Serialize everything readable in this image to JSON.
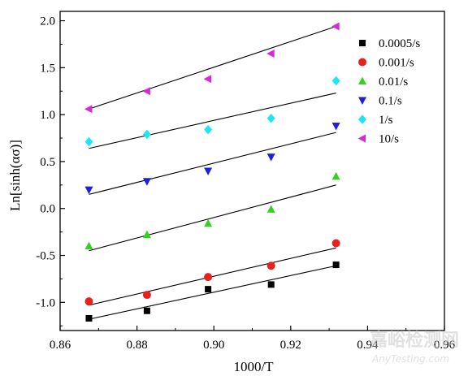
{
  "chart_data": {
    "type": "scatter",
    "xlabel": "1000/T",
    "ylabel": "Ln[sinh(ασ)]",
    "xlim": [
      0.86,
      0.96
    ],
    "ylim": [
      -1.3,
      2.1
    ],
    "x_ticks": [
      "0.86",
      "0.88",
      "0.90",
      "0.92",
      "0.94",
      "0.96"
    ],
    "y_ticks": [
      "-1.0",
      "-0.5",
      "0.0",
      "0.5",
      "1.0",
      "1.5",
      "2.0"
    ],
    "x": [
      0.8675,
      0.8826,
      0.8985,
      0.9149,
      0.9318
    ],
    "legend_position": "top-right",
    "series": [
      {
        "name": "0.0005/s",
        "marker": "square",
        "color": "#000000",
        "values": [
          -1.17,
          -1.09,
          -0.86,
          -0.81,
          -0.6
        ],
        "fit": [
          -1.18,
          -0.61
        ]
      },
      {
        "name": "0.001/s",
        "marker": "circle",
        "color": "#e8211c",
        "values": [
          -0.99,
          -0.92,
          -0.73,
          -0.61,
          -0.37
        ],
        "fit": [
          -1.03,
          -0.42
        ]
      },
      {
        "name": "0.01/s",
        "marker": "triangle-up",
        "color": "#34d11f",
        "values": [
          -0.4,
          -0.28,
          -0.16,
          -0.01,
          0.34
        ],
        "fit": [
          -0.45,
          0.25
        ]
      },
      {
        "name": "0.1/s",
        "marker": "triangle-down",
        "color": "#1f1fe0",
        "values": [
          0.2,
          0.29,
          0.4,
          0.55,
          0.88
        ],
        "fit": [
          0.15,
          0.81
        ]
      },
      {
        "name": "1/s",
        "marker": "diamond",
        "color": "#1ee6f0",
        "values": [
          0.71,
          0.79,
          0.84,
          0.96,
          1.36
        ],
        "fit": [
          0.64,
          1.23
        ]
      },
      {
        "name": "10/s",
        "marker": "triangle-left",
        "color": "#d62ad9",
        "values": [
          1.06,
          1.25,
          1.38,
          1.65,
          1.94
        ],
        "fit": [
          1.06,
          1.94
        ]
      }
    ]
  },
  "watermark": {
    "cn": "嘉峪检测网",
    "en": "AnyTesting.com"
  }
}
